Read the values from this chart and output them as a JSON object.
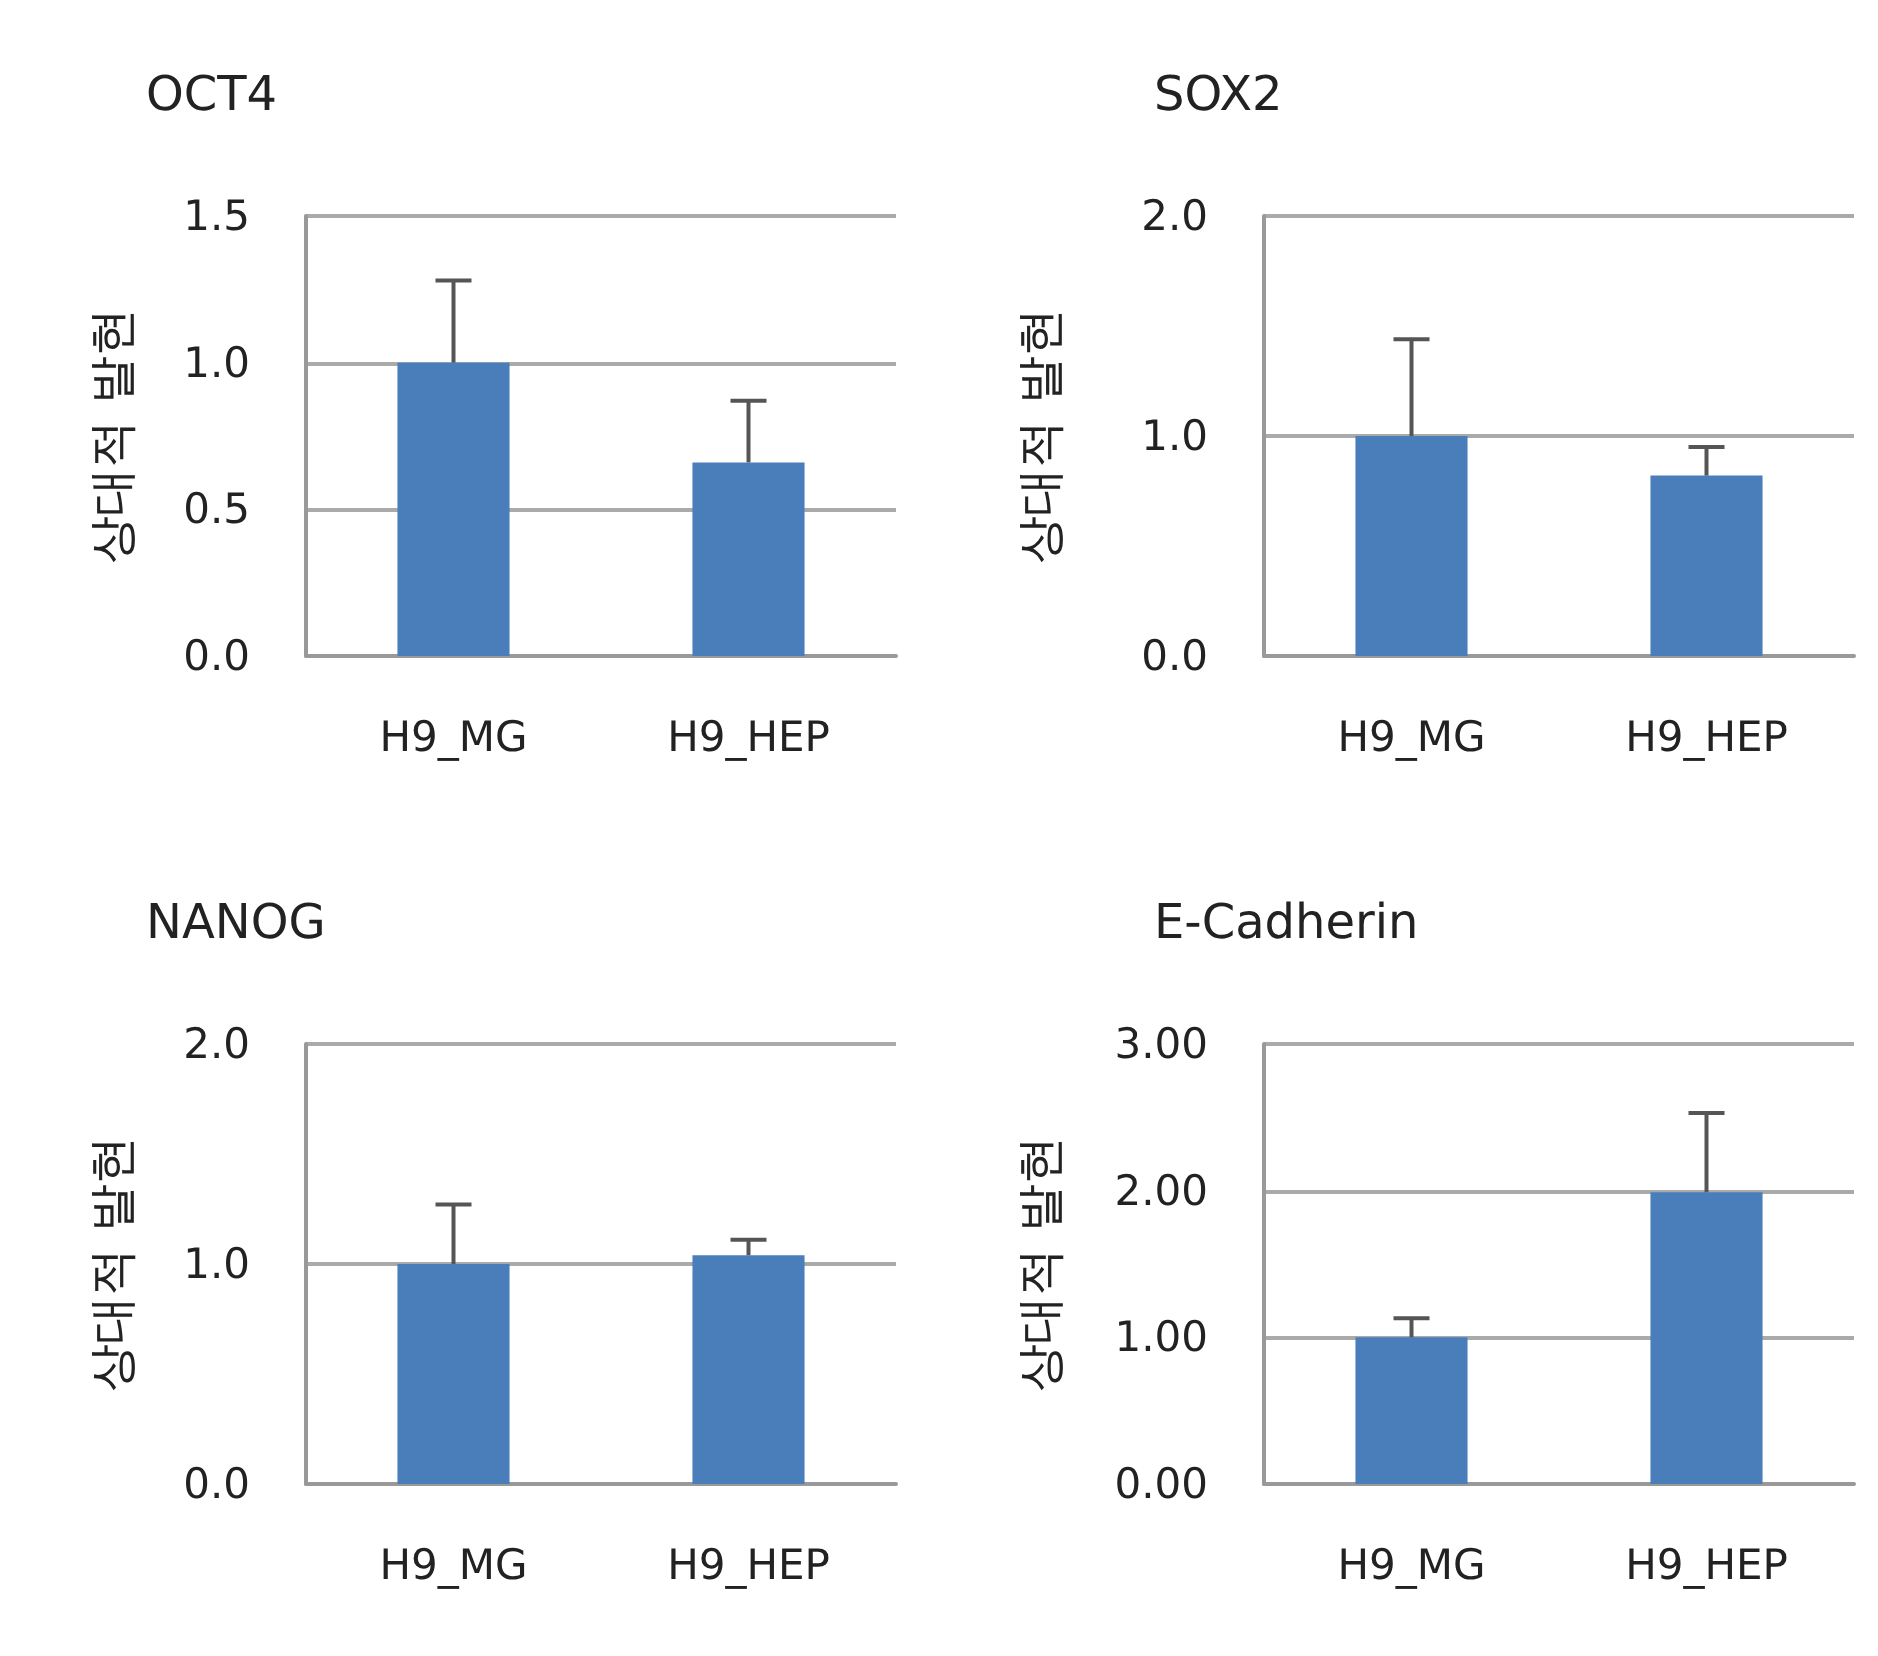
{
  "chart_data": [
    {
      "type": "bar",
      "title": "OCT4",
      "ylabel": "상대적 발현",
      "categories": [
        "H9_MG",
        "H9_HEP"
      ],
      "values": [
        1.0,
        0.66
      ],
      "errors": [
        [
          1.0,
          1.28
        ],
        [
          0.66,
          0.87
        ]
      ],
      "color": "#4a7ebb",
      "ylim": [
        0,
        1.5
      ],
      "yticks": [
        {
          "value": 0,
          "label": "0.0"
        },
        0.5,
        {
          "value": 1,
          "label": "1.0"
        },
        1.5
      ],
      "grid": "y"
    },
    {
      "type": "bar",
      "title": "SOX2",
      "ylabel": "상대적 발현",
      "categories": [
        "H9_MG",
        "H9_HEP"
      ],
      "values": [
        1.0,
        0.82
      ],
      "errors": [
        [
          1.0,
          1.44
        ],
        [
          0.82,
          0.95
        ]
      ],
      "color": "#4a7ebb",
      "ylim": [
        0,
        2
      ],
      "yticks": [
        {
          "value": 0,
          "label": "0.0"
        },
        {
          "value": 1,
          "label": "1.0"
        },
        {
          "value": 2,
          "label": "2.0"
        }
      ],
      "grid": "y"
    },
    {
      "type": "bar",
      "title": "NANOG",
      "ylabel": "상대적 발현",
      "categories": [
        "H9_MG",
        "H9_HEP"
      ],
      "values": [
        1.0,
        1.04
      ],
      "errors": [
        [
          1.0,
          1.27
        ],
        [
          1.04,
          1.11
        ]
      ],
      "color": "#4a7ebb",
      "ylim": [
        0,
        2
      ],
      "yticks": [
        {
          "value": 0,
          "label": "0.0"
        },
        {
          "value": 1,
          "label": "1.0"
        },
        {
          "value": 2,
          "label": "2.0"
        }
      ],
      "grid": "y"
    },
    {
      "type": "bar",
      "title": "E-Cadherin",
      "ylabel": "상대적 발현",
      "categories": [
        "H9_MG",
        "H9_HEP"
      ],
      "values": [
        1.0,
        1.99
      ],
      "errors": [
        [
          1.0,
          1.13
        ],
        [
          1.99,
          2.53
        ]
      ],
      "color": "#4a7ebb",
      "ylim": [
        0,
        3
      ],
      "yticks": [
        {
          "value": 0,
          "label": "0.00"
        },
        {
          "value": 1,
          "label": "1.00"
        },
        {
          "value": 2,
          "label": "2.00"
        },
        {
          "value": 3,
          "label": "3.00"
        }
      ],
      "grid": "y"
    }
  ]
}
